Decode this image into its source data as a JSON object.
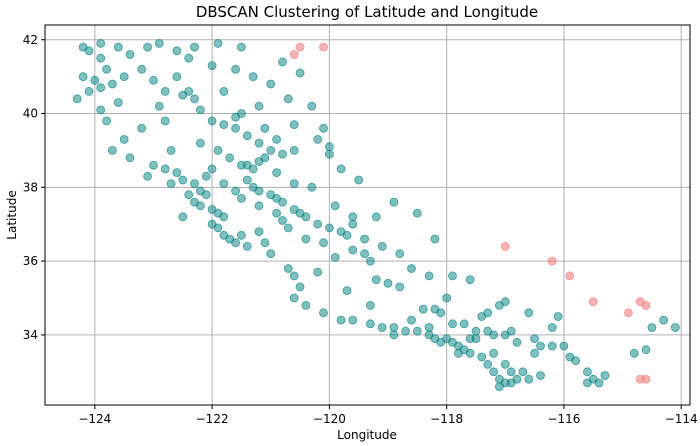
{
  "chart_data": {
    "type": "scatter",
    "title": "DBSCAN Clustering of Latitude and Longitude",
    "xlabel": "Longitude",
    "ylabel": "Latitude",
    "xlim": [
      -124.85,
      -113.85
    ],
    "ylim": [
      32.1,
      42.4
    ],
    "xticks": [
      -124,
      -122,
      -120,
      -118,
      -116,
      -114
    ],
    "yticks": [
      34,
      36,
      38,
      40,
      42
    ],
    "xtick_labels": [
      "−124",
      "−122",
      "−120",
      "−118",
      "−116",
      "−114"
    ],
    "ytick_labels": [
      "34",
      "36",
      "38",
      "40",
      "42"
    ],
    "grid": true,
    "legend": "none",
    "series": [
      {
        "color": "#008080",
        "alpha": 0.5,
        "points": [
          [
            -124.2,
            41.8
          ],
          [
            -124.1,
            41.7
          ],
          [
            -123.9,
            41.5
          ],
          [
            -123.8,
            41.2
          ],
          [
            -124.0,
            40.9
          ],
          [
            -123.9,
            40.7
          ],
          [
            -124.1,
            40.6
          ],
          [
            -123.7,
            40.8
          ],
          [
            -123.5,
            41.0
          ],
          [
            -123.2,
            41.2
          ],
          [
            -123.0,
            40.9
          ],
          [
            -122.8,
            40.6
          ],
          [
            -122.5,
            40.5
          ],
          [
            -122.4,
            40.6
          ],
          [
            -122.3,
            40.4
          ],
          [
            -122.6,
            41.7
          ],
          [
            -122.4,
            41.5
          ],
          [
            -122.0,
            41.3
          ],
          [
            -121.6,
            41.2
          ],
          [
            -121.3,
            41.0
          ],
          [
            -120.8,
            41.4
          ],
          [
            -120.5,
            41.1
          ],
          [
            -120.7,
            40.4
          ],
          [
            -121.2,
            40.2
          ],
          [
            -121.5,
            40.0
          ],
          [
            -122.2,
            40.1
          ],
          [
            -122.0,
            39.8
          ],
          [
            -121.8,
            39.7
          ],
          [
            -121.6,
            39.6
          ],
          [
            -121.4,
            39.4
          ],
          [
            -121.2,
            39.2
          ],
          [
            -121.0,
            39.0
          ],
          [
            -120.8,
            38.9
          ],
          [
            -120.6,
            39.0
          ],
          [
            -120.2,
            39.3
          ],
          [
            -120.0,
            39.1
          ],
          [
            -122.8,
            39.8
          ],
          [
            -123.2,
            39.6
          ],
          [
            -123.5,
            39.3
          ],
          [
            -123.7,
            39.0
          ],
          [
            -123.4,
            38.8
          ],
          [
            -123.0,
            38.6
          ],
          [
            -122.8,
            38.5
          ],
          [
            -122.6,
            38.4
          ],
          [
            -122.5,
            38.2
          ],
          [
            -122.3,
            38.1
          ],
          [
            -122.2,
            37.9
          ],
          [
            -122.1,
            37.8
          ],
          [
            -122.4,
            37.8
          ],
          [
            -122.3,
            37.6
          ],
          [
            -122.2,
            37.5
          ],
          [
            -122.0,
            37.4
          ],
          [
            -121.9,
            37.3
          ],
          [
            -121.8,
            37.2
          ],
          [
            -122.0,
            37.0
          ],
          [
            -121.9,
            36.9
          ],
          [
            -121.8,
            36.7
          ],
          [
            -121.7,
            36.6
          ],
          [
            -121.6,
            36.5
          ],
          [
            -121.4,
            36.4
          ],
          [
            -121.0,
            36.2
          ],
          [
            -120.7,
            35.8
          ],
          [
            -120.6,
            35.6
          ],
          [
            -120.5,
            35.3
          ],
          [
            -120.6,
            35.0
          ],
          [
            -120.4,
            34.8
          ],
          [
            -120.1,
            34.6
          ],
          [
            -119.8,
            34.4
          ],
          [
            -119.6,
            34.4
          ],
          [
            -119.3,
            34.3
          ],
          [
            -119.1,
            34.2
          ],
          [
            -118.9,
            34.2
          ],
          [
            -118.7,
            34.1
          ],
          [
            -118.5,
            34.1
          ],
          [
            -118.3,
            34.0
          ],
          [
            -118.2,
            33.9
          ],
          [
            -118.1,
            33.8
          ],
          [
            -118.0,
            33.9
          ],
          [
            -117.9,
            33.8
          ],
          [
            -117.8,
            33.7
          ],
          [
            -117.7,
            33.6
          ],
          [
            -117.6,
            33.5
          ],
          [
            -117.4,
            33.4
          ],
          [
            -117.3,
            33.2
          ],
          [
            -117.2,
            33.0
          ],
          [
            -117.1,
            32.8
          ],
          [
            -117.0,
            32.7
          ],
          [
            -117.1,
            32.6
          ],
          [
            -116.9,
            32.7
          ],
          [
            -116.8,
            32.8
          ],
          [
            -116.7,
            33.0
          ],
          [
            -116.5,
            33.5
          ],
          [
            -116.4,
            33.7
          ],
          [
            -116.2,
            33.7
          ],
          [
            -116.0,
            33.7
          ],
          [
            -115.8,
            33.3
          ],
          [
            -115.6,
            33.0
          ],
          [
            -115.5,
            32.8
          ],
          [
            -115.4,
            32.7
          ],
          [
            -115.6,
            32.7
          ],
          [
            -117.5,
            34.1
          ],
          [
            -117.3,
            34.1
          ],
          [
            -117.2,
            34.0
          ],
          [
            -117.0,
            34.0
          ],
          [
            -116.9,
            34.1
          ],
          [
            -117.4,
            34.5
          ],
          [
            -117.3,
            34.6
          ],
          [
            -117.1,
            34.8
          ],
          [
            -117.0,
            34.9
          ],
          [
            -116.6,
            34.6
          ],
          [
            -116.2,
            34.2
          ],
          [
            -118.1,
            34.6
          ],
          [
            -118.2,
            34.7
          ],
          [
            -118.4,
            34.7
          ],
          [
            -118.0,
            35.0
          ],
          [
            -118.8,
            35.3
          ],
          [
            -119.0,
            35.4
          ],
          [
            -119.2,
            35.5
          ],
          [
            -119.3,
            36.0
          ],
          [
            -119.4,
            36.2
          ],
          [
            -119.6,
            36.3
          ],
          [
            -119.7,
            36.7
          ],
          [
            -119.8,
            36.8
          ],
          [
            -120.0,
            36.9
          ],
          [
            -120.2,
            37.0
          ],
          [
            -120.4,
            37.2
          ],
          [
            -120.5,
            37.3
          ],
          [
            -120.6,
            37.4
          ],
          [
            -120.8,
            37.6
          ],
          [
            -120.9,
            37.7
          ],
          [
            -121.0,
            37.8
          ],
          [
            -121.2,
            37.9
          ],
          [
            -121.3,
            38.0
          ],
          [
            -121.4,
            38.2
          ],
          [
            -121.3,
            38.5
          ],
          [
            -121.4,
            38.6
          ],
          [
            -121.5,
            38.6
          ],
          [
            -121.2,
            38.7
          ],
          [
            -121.1,
            38.8
          ],
          [
            -120.9,
            38.4
          ],
          [
            -120.6,
            38.1
          ],
          [
            -120.3,
            38.0
          ],
          [
            -119.9,
            37.5
          ],
          [
            -119.6,
            37.2
          ],
          [
            -119.4,
            36.6
          ],
          [
            -119.1,
            36.4
          ],
          [
            -118.8,
            36.2
          ],
          [
            -118.6,
            35.8
          ],
          [
            -118.3,
            35.6
          ],
          [
            -117.9,
            35.6
          ],
          [
            -117.6,
            35.5
          ],
          [
            -119.8,
            38.5
          ],
          [
            -120.0,
            38.9
          ],
          [
            -119.5,
            38.2
          ],
          [
            -118.9,
            37.6
          ],
          [
            -118.5,
            37.3
          ],
          [
            -118.2,
            36.6
          ],
          [
            -122.7,
            39.0
          ],
          [
            -122.2,
            39.2
          ],
          [
            -121.9,
            39.0
          ],
          [
            -121.7,
            38.8
          ],
          [
            -122.0,
            38.5
          ],
          [
            -122.1,
            38.3
          ],
          [
            -121.8,
            38.1
          ],
          [
            -121.6,
            37.9
          ],
          [
            -121.5,
            37.7
          ],
          [
            -121.2,
            37.5
          ],
          [
            -120.9,
            37.3
          ],
          [
            -120.8,
            37.1
          ],
          [
            -123.6,
            40.3
          ],
          [
            -123.9,
            40.1
          ],
          [
            -123.8,
            39.8
          ],
          [
            -122.9,
            40.2
          ],
          [
            -122.6,
            41.0
          ],
          [
            -121.8,
            40.6
          ],
          [
            -121.0,
            40.8
          ],
          [
            -120.6,
            39.7
          ],
          [
            -120.1,
            39.6
          ],
          [
            -120.3,
            40.2
          ],
          [
            -122.5,
            37.2
          ],
          [
            -121.5,
            36.7
          ],
          [
            -121.2,
            36.8
          ],
          [
            -120.1,
            36.5
          ],
          [
            -119.9,
            36.1
          ],
          [
            -120.2,
            35.7
          ],
          [
            -119.7,
            35.2
          ],
          [
            -119.3,
            34.8
          ],
          [
            -118.6,
            34.4
          ],
          [
            -117.7,
            34.3
          ],
          [
            -117.5,
            33.9
          ],
          [
            -116.8,
            33.8
          ],
          [
            -116.5,
            33.9
          ],
          [
            -115.9,
            33.4
          ],
          [
            -115.3,
            32.9
          ],
          [
            -114.6,
            33.6
          ],
          [
            -114.5,
            34.2
          ],
          [
            -114.3,
            34.4
          ],
          [
            -114.1,
            34.2
          ],
          [
            -114.8,
            33.5
          ],
          [
            -116.1,
            34.5
          ],
          [
            -118.9,
            34.0
          ],
          [
            -117.9,
            34.3
          ],
          [
            -118.3,
            34.2
          ],
          [
            -117.8,
            33.5
          ],
          [
            -117.6,
            33.9
          ],
          [
            -117.2,
            33.5
          ],
          [
            -117.0,
            33.2
          ],
          [
            -116.9,
            33.0
          ],
          [
            -116.6,
            32.8
          ],
          [
            -116.4,
            32.9
          ],
          [
            -119.6,
            37.0
          ],
          [
            -119.2,
            37.2
          ],
          [
            -120.4,
            36.6
          ],
          [
            -120.7,
            36.9
          ],
          [
            -121.1,
            36.5
          ],
          [
            -121.6,
            39.9
          ],
          [
            -121.1,
            39.6
          ],
          [
            -120.9,
            39.3
          ],
          [
            -122.7,
            38.1
          ],
          [
            -123.1,
            38.3
          ],
          [
            -124.3,
            40.4
          ],
          [
            -124.2,
            41.0
          ],
          [
            -123.9,
            41.9
          ],
          [
            -123.6,
            41.8
          ],
          [
            -123.4,
            41.6
          ],
          [
            -123.1,
            41.8
          ],
          [
            -122.9,
            41.9
          ],
          [
            -122.3,
            41.8
          ],
          [
            -121.9,
            41.9
          ],
          [
            -121.5,
            41.8
          ]
        ]
      },
      {
        "color": "#f08080",
        "alpha": 0.6,
        "points": [
          [
            -120.5,
            41.8
          ],
          [
            -120.6,
            41.6
          ],
          [
            -120.1,
            41.8
          ],
          [
            -117.0,
            36.4
          ],
          [
            -116.2,
            36.0
          ],
          [
            -115.9,
            35.6
          ],
          [
            -115.5,
            34.9
          ],
          [
            -114.9,
            34.6
          ],
          [
            -114.7,
            34.9
          ],
          [
            -114.6,
            34.8
          ],
          [
            -114.7,
            32.8
          ],
          [
            -114.6,
            32.8
          ]
        ]
      }
    ]
  }
}
